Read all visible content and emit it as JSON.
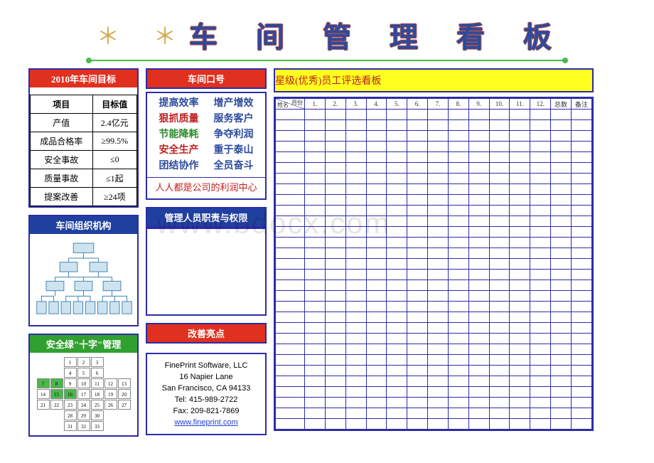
{
  "title": {
    "stars": "＊",
    "text": "车 间 管 理 看 板"
  },
  "goals": {
    "header": "2010年车间目标",
    "col1": "项目",
    "col2": "目标值",
    "rows": [
      {
        "k": "产值",
        "v": "2.4亿元"
      },
      {
        "k": "成品合格率",
        "v": "≥99.5%"
      },
      {
        "k": "安全事故",
        "v": "≤0"
      },
      {
        "k": "质量事故",
        "v": "≤1起"
      },
      {
        "k": "提案改善",
        "v": "≥24项"
      }
    ]
  },
  "slogan": {
    "header": "车间口号",
    "rows": [
      {
        "l": "提高效率",
        "lc": "c-blue",
        "r": "增产增效",
        "rc": "c-blue"
      },
      {
        "l": "狠抓质量",
        "lc": "c-red",
        "r": "服务客户",
        "rc": "c-blue"
      },
      {
        "l": "节能降耗",
        "lc": "c-green",
        "r": "争夺利润",
        "rc": "c-blue"
      },
      {
        "l": "安全生产",
        "lc": "c-red",
        "r": "重于泰山",
        "rc": "c-blue"
      },
      {
        "l": "团结协作",
        "lc": "c-blue",
        "r": "全员奋斗",
        "rc": "c-blue"
      }
    ],
    "foot": "人人都是公司的利润中心"
  },
  "org": {
    "header": "车间组织机构"
  },
  "mgmt": {
    "header": "管理人员职责与权限"
  },
  "cross": {
    "header": "安全绿\"十字\"管理"
  },
  "improve": {
    "header": "改善亮点",
    "lines": [
      "FinePrint Software, LLC",
      "16 Napier Lane",
      "San Francisco, CA 94133",
      "Tel: 415-989-2722",
      "Fax: 209-821-7869"
    ],
    "link": "www.fineprint.com"
  },
  "star": {
    "header": "星级(优秀)员工评选看板",
    "diag_top": "月份",
    "diag_left": "姓名",
    "months": [
      "1.",
      "2.",
      "3.",
      "4.",
      "5.",
      "6.",
      "7.",
      "8.",
      "9.",
      "10.",
      "11.",
      "12.",
      "总数",
      "备注"
    ],
    "body_rows": 30
  },
  "watermark": "www.bdocx.com",
  "colors": {
    "border": "#2c2ca8",
    "red": "#e03020",
    "blue": "#2040a0",
    "green": "#30a030",
    "yellow": "#ffff20"
  },
  "cross_cells": {
    "width": 7,
    "height": 7,
    "pattern": [
      "..XXX..",
      "..XXX..",
      "XXXXXXX",
      "XXXXXXX",
      "XXXXXXX",
      "..XXX..",
      "..XXX.."
    ],
    "on": [
      [
        2,
        0
      ],
      [
        2,
        1
      ],
      [
        3,
        1
      ],
      [
        3,
        2
      ]
    ]
  }
}
